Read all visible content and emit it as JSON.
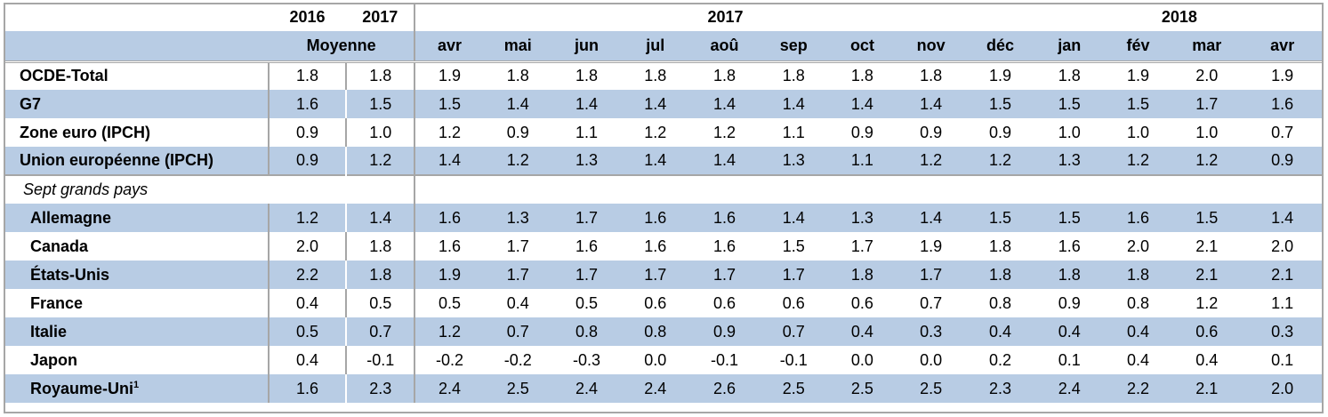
{
  "header": {
    "years_avg": [
      "2016",
      "2017"
    ],
    "avg_label": "Moyenne",
    "group_2017": "2017",
    "group_2018": "2018",
    "months": [
      "avr",
      "mai",
      "jun",
      "jul",
      "aoû",
      "sep",
      "oct",
      "nov",
      "déc",
      "jan",
      "fév",
      "mar",
      "avr"
    ]
  },
  "rows_top": [
    {
      "label": "OCDE-Total",
      "values": [
        "1.8",
        "1.8",
        "1.9",
        "1.8",
        "1.8",
        "1.8",
        "1.8",
        "1.8",
        "1.8",
        "1.8",
        "1.9",
        "1.8",
        "1.9",
        "2.0",
        "1.9"
      ]
    },
    {
      "label": "G7",
      "values": [
        "1.6",
        "1.5",
        "1.5",
        "1.4",
        "1.4",
        "1.4",
        "1.4",
        "1.4",
        "1.4",
        "1.4",
        "1.5",
        "1.5",
        "1.5",
        "1.7",
        "1.6"
      ]
    },
    {
      "label": "Zone euro (IPCH)",
      "values": [
        "0.9",
        "1.0",
        "1.2",
        "0.9",
        "1.1",
        "1.2",
        "1.2",
        "1.1",
        "0.9",
        "0.9",
        "0.9",
        "1.0",
        "1.0",
        "1.0",
        "0.7"
      ]
    },
    {
      "label": "Union européenne (IPCH)",
      "values": [
        "0.9",
        "1.2",
        "1.4",
        "1.2",
        "1.3",
        "1.4",
        "1.4",
        "1.3",
        "1.1",
        "1.2",
        "1.2",
        "1.3",
        "1.2",
        "1.2",
        "0.9"
      ]
    }
  ],
  "section_label": "Sept grands pays",
  "rows_countries": [
    {
      "label": "Allemagne",
      "values": [
        "1.2",
        "1.4",
        "1.6",
        "1.3",
        "1.7",
        "1.6",
        "1.6",
        "1.4",
        "1.3",
        "1.4",
        "1.5",
        "1.5",
        "1.6",
        "1.5",
        "1.4"
      ]
    },
    {
      "label": "Canada",
      "values": [
        "2.0",
        "1.8",
        "1.6",
        "1.7",
        "1.6",
        "1.6",
        "1.6",
        "1.5",
        "1.7",
        "1.9",
        "1.8",
        "1.6",
        "2.0",
        "2.1",
        "2.0"
      ]
    },
    {
      "label": "États-Unis",
      "values": [
        "2.2",
        "1.8",
        "1.9",
        "1.7",
        "1.7",
        "1.7",
        "1.7",
        "1.7",
        "1.8",
        "1.7",
        "1.8",
        "1.8",
        "1.8",
        "2.1",
        "2.1"
      ]
    },
    {
      "label": "France",
      "values": [
        "0.4",
        "0.5",
        "0.5",
        "0.4",
        "0.5",
        "0.6",
        "0.6",
        "0.6",
        "0.6",
        "0.7",
        "0.8",
        "0.9",
        "0.8",
        "1.2",
        "1.1"
      ]
    },
    {
      "label": "Italie",
      "values": [
        "0.5",
        "0.7",
        "1.2",
        "0.7",
        "0.8",
        "0.8",
        "0.9",
        "0.7",
        "0.4",
        "0.3",
        "0.4",
        "0.4",
        "0.4",
        "0.6",
        "0.3"
      ]
    },
    {
      "label": "Japon",
      "values": [
        "0.4",
        "-0.1",
        "-0.2",
        "-0.2",
        "-0.3",
        "0.0",
        "-0.1",
        "-0.1",
        "0.0",
        "0.0",
        "0.2",
        "0.1",
        "0.4",
        "0.4",
        "0.1"
      ]
    },
    {
      "label": "Royaume-Uni",
      "footnote": "1",
      "values": [
        "1.6",
        "2.3",
        "2.4",
        "2.5",
        "2.4",
        "2.4",
        "2.6",
        "2.5",
        "2.5",
        "2.5",
        "2.3",
        "2.4",
        "2.2",
        "2.1",
        "2.0"
      ]
    }
  ],
  "colors": {
    "shade": "#b8cce4",
    "rule": "#a6a6a6"
  }
}
